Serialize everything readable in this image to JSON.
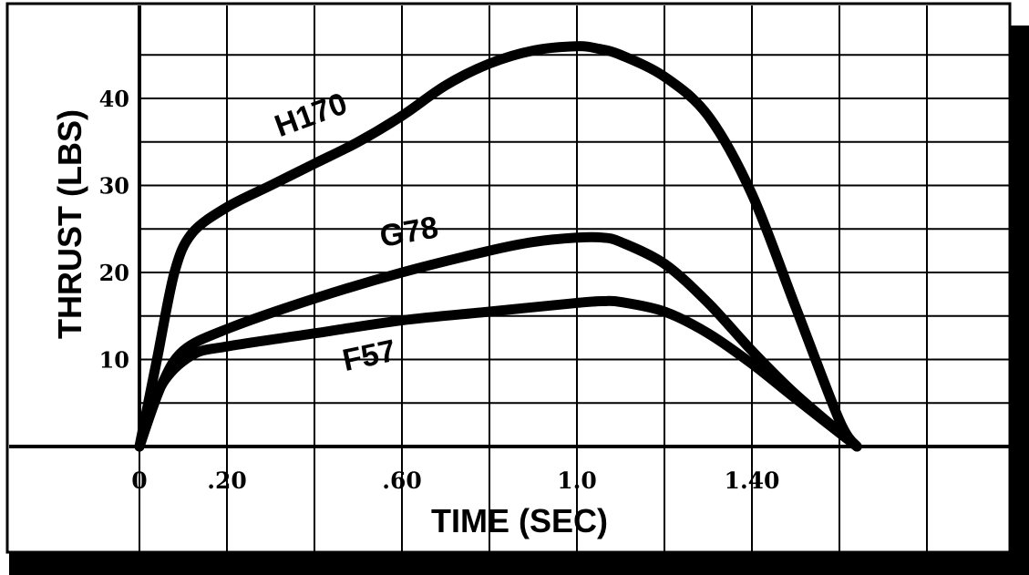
{
  "chart_data": {
    "type": "line",
    "xlabel": "TIME (SEC)",
    "ylabel": "THRUST (LBS)",
    "xlim": [
      0,
      1.8
    ],
    "ylim": [
      0,
      50
    ],
    "x_ticks": [
      "0",
      ".20",
      ".60",
      "1.0",
      "1.40"
    ],
    "x_tick_values": [
      0,
      0.2,
      0.6,
      1.0,
      1.4
    ],
    "y_ticks": [
      "10",
      "20",
      "30",
      "40"
    ],
    "y_tick_values": [
      10,
      20,
      30,
      40
    ],
    "grid": true,
    "series": [
      {
        "name": "H170",
        "x": [
          0,
          0.04,
          0.08,
          0.12,
          0.2,
          0.3,
          0.4,
          0.5,
          0.6,
          0.7,
          0.8,
          0.9,
          1.0,
          1.05,
          1.1,
          1.2,
          1.3,
          1.4,
          1.5,
          1.6,
          1.64
        ],
        "y": [
          0,
          10,
          20,
          24.5,
          27.5,
          30,
          32.5,
          35,
          38,
          41.5,
          44,
          45.5,
          46,
          45.7,
          45,
          42.5,
          38,
          29,
          16,
          3,
          0
        ]
      },
      {
        "name": "G78",
        "x": [
          0,
          0.05,
          0.1,
          0.2,
          0.4,
          0.6,
          0.8,
          0.9,
          1.0,
          1.06,
          1.1,
          1.2,
          1.3,
          1.4,
          1.5,
          1.64
        ],
        "y": [
          0,
          7,
          11,
          13.5,
          17,
          20,
          22.5,
          23.5,
          24,
          24,
          23.5,
          21,
          16.5,
          11,
          6,
          0
        ]
      },
      {
        "name": "F57",
        "x": [
          0,
          0.05,
          0.12,
          0.2,
          0.4,
          0.6,
          0.8,
          1.0,
          1.06,
          1.1,
          1.2,
          1.3,
          1.4,
          1.5,
          1.64
        ],
        "y": [
          0,
          7,
          10.5,
          11.5,
          13,
          14.5,
          15.5,
          16.5,
          16.7,
          16.6,
          15.5,
          13,
          9.5,
          5.5,
          0
        ]
      }
    ]
  }
}
